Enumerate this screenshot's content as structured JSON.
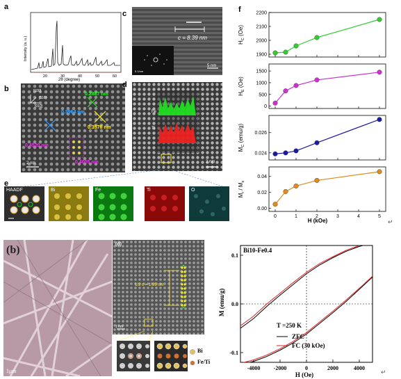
{
  "panels": {
    "a": {
      "label": "a",
      "ylabel": "Intensity (a. u.)",
      "xlabel": "2θ (degree)",
      "xticks": [
        "20",
        "30",
        "40",
        "50",
        "60"
      ]
    },
    "b": {
      "label": "b",
      "dirs": [
        "[100]",
        "[110]",
        "[010]"
      ],
      "d1": "0.2887 nm",
      "d2": "0.3964 nm",
      "d3": "0.3576 nm",
      "d4": "0.4520 nm",
      "d5": "0.4005 nm",
      "scale": "2 nm"
    },
    "c": {
      "label": "c",
      "c_value": "c = 8.39 nm",
      "scale_main": "5 nm",
      "scale_inset": "5 1/nm"
    },
    "d": {
      "label": "d",
      "fe": "Fe",
      "ti": "Ti",
      "scale": "2 nm"
    },
    "e": {
      "label": "e",
      "maps": [
        "HAADF",
        "Bi",
        "Fe",
        "Ti",
        "O"
      ]
    },
    "f": {
      "label": "f",
      "xlabel": "H (kOe)",
      "xticks": [
        "0",
        "1",
        "2",
        "3",
        "4",
        "5"
      ],
      "subplots": [
        {
          "ylabel_main": "H",
          "ylabel_sub": "C",
          "ylabel_unit": " (Oe)",
          "yticks": [
            "1900",
            "2000",
            "2100",
            "2200"
          ],
          "ylim": [
            1880,
            2200
          ]
        },
        {
          "ylabel_main": "H",
          "ylabel_sub": "E",
          "ylabel_unit": " (Oe)",
          "yticks": [
            "0",
            "500",
            "1000",
            "1500"
          ],
          "ylim": [
            -100,
            1800
          ]
        },
        {
          "ylabel_main": "M",
          "ylabel_sub": "C",
          "ylabel_unit": " (emu/g)",
          "yticks": [
            "0.024",
            "0.026"
          ],
          "ylim": [
            0.0233,
            0.0277
          ]
        },
        {
          "ylabel_main": "M",
          "ylabel_sub": "r",
          "ylabel_mid": " / M",
          "ylabel_sub2": "s",
          "yticks": [
            "0.00",
            "0.02",
            "0.04"
          ],
          "ylim": [
            -0.004,
            0.052
          ]
        }
      ]
    },
    "bottom_b": {
      "label": "(b)",
      "scale": "1μm"
    },
    "bottom_d": {
      "label": "(d)",
      "spacing": "1/2 c = 1.95 nm",
      "scale": "1 nm",
      "legend_bi": "Bi",
      "legend_feti": "Fe/Ti"
    },
    "mh": {
      "title": "Bi10-Fe0.4",
      "ylabel": "M (emu/g)",
      "xlabel": "H (Oe)",
      "xticks": [
        "-4000",
        "-2000",
        "0",
        "2000",
        "4000"
      ],
      "yticks": [
        "-0.1",
        "0.0",
        "0.1"
      ],
      "temp": "T =250 K",
      "legend": [
        "ZFC",
        "FC (30 kOe)"
      ],
      "colors": {
        "zfc": "#000000",
        "fc": "#e02020"
      }
    }
  },
  "return_glyph": "↵",
  "chart_data": [
    {
      "type": "line",
      "title": "",
      "xlabel": "H (kOe)",
      "ylabel": "HC (Oe)",
      "x": [
        0,
        0.5,
        1,
        2,
        5
      ],
      "series": [
        {
          "values": [
            1910,
            1915,
            1960,
            2020,
            2150
          ],
          "color": "#33cc33"
        }
      ],
      "ylim": [
        1880,
        2200
      ]
    },
    {
      "type": "line",
      "title": "",
      "xlabel": "H (kOe)",
      "ylabel": "HE (Oe)",
      "x": [
        0,
        0.5,
        1,
        2,
        5
      ],
      "series": [
        {
          "values": [
            130,
            650,
            880,
            1120,
            1450
          ],
          "color": "#cc33cc"
        }
      ],
      "ylim": [
        -100,
        1800
      ]
    },
    {
      "type": "line",
      "title": "",
      "xlabel": "H (kOe)",
      "ylabel": "MC (emu/g)",
      "x": [
        0,
        0.5,
        1,
        2,
        5
      ],
      "series": [
        {
          "values": [
            0.0239,
            0.024,
            0.0242,
            0.025,
            0.0273
          ],
          "color": "#1a1aa6"
        }
      ],
      "ylim": [
        0.0233,
        0.0277
      ]
    },
    {
      "type": "line",
      "title": "",
      "xlabel": "H (kOe)",
      "ylabel": "Mr / Ms",
      "x": [
        0,
        0.5,
        1,
        2,
        5
      ],
      "series": [
        {
          "values": [
            0.005,
            0.021,
            0.028,
            0.035,
            0.046
          ],
          "color": "#e08a1e"
        }
      ],
      "ylim": [
        -0.004,
        0.052
      ]
    },
    {
      "type": "line",
      "title": "Bi10-Fe0.4",
      "xlabel": "H (Oe)",
      "ylabel": "M (emu/g)",
      "xlim": [
        -5000,
        5000
      ],
      "ylim": [
        -0.12,
        0.12
      ],
      "series": [
        {
          "name": "ZFC",
          "color": "#000000",
          "upper": [
            [
              -5000,
              -0.05
            ],
            [
              -4000,
              -0.03
            ],
            [
              -3000,
              -0.005
            ],
            [
              -2000,
              0.018
            ],
            [
              -1000,
              0.04
            ],
            [
              0,
              0.062
            ],
            [
              1000,
              0.08
            ],
            [
              2000,
              0.095
            ],
            [
              3000,
              0.108
            ],
            [
              4000,
              0.118
            ],
            [
              5000,
              0.125
            ]
          ],
          "lower": [
            [
              -5000,
              -0.125
            ],
            [
              -4000,
              -0.118
            ],
            [
              -3000,
              -0.108
            ],
            [
              -2000,
              -0.095
            ],
            [
              -1000,
              -0.08
            ],
            [
              0,
              -0.062
            ],
            [
              1000,
              -0.04
            ],
            [
              2000,
              -0.018
            ],
            [
              3000,
              0.005
            ],
            [
              4000,
              0.03
            ],
            [
              5000,
              0.055
            ]
          ]
        },
        {
          "name": "FC (30 kOe)",
          "color": "#e02020",
          "upper": [
            [
              -5000,
              -0.045
            ],
            [
              -4000,
              -0.025
            ],
            [
              -3000,
              0.0
            ],
            [
              -2000,
              0.022
            ],
            [
              -1000,
              0.044
            ],
            [
              0,
              0.065
            ],
            [
              1000,
              0.083
            ],
            [
              2000,
              0.097
            ],
            [
              3000,
              0.11
            ],
            [
              4000,
              0.12
            ],
            [
              5000,
              0.127
            ]
          ],
          "lower": [
            [
              -5000,
              -0.122
            ],
            [
              -4000,
              -0.115
            ],
            [
              -3000,
              -0.105
            ],
            [
              -2000,
              -0.092
            ],
            [
              -1000,
              -0.077
            ],
            [
              0,
              -0.059
            ],
            [
              1000,
              -0.037
            ],
            [
              2000,
              -0.015
            ],
            [
              3000,
              0.008
            ],
            [
              4000,
              0.032
            ],
            [
              5000,
              0.057
            ]
          ]
        }
      ]
    }
  ]
}
